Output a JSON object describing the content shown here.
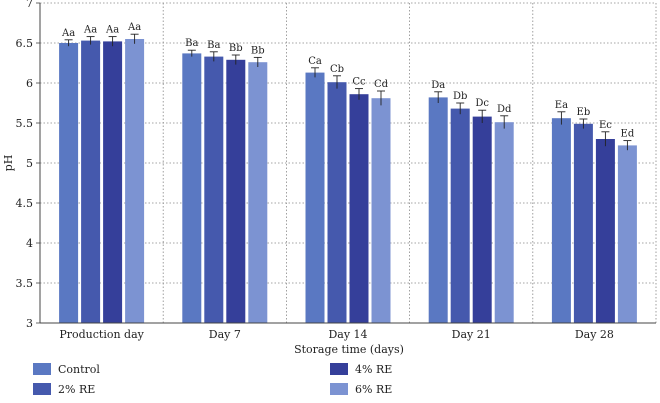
{
  "chart_data": {
    "type": "bar",
    "title": "",
    "xlabel": "Storage time (days)",
    "ylabel": "pH",
    "ylim": [
      3,
      7
    ],
    "yticks": [
      "3",
      "3.5",
      "4",
      "4.5",
      "5",
      "5.5",
      "6",
      "6.5",
      "7"
    ],
    "grid": true,
    "categories": [
      "Production day",
      "Day 7",
      "Day 14",
      "Day 21",
      "Day 28"
    ],
    "series": [
      {
        "name": "Control",
        "color": "#5a78c2",
        "values": [
          6.5,
          6.37,
          6.13,
          5.82,
          5.56
        ],
        "errors": [
          0.04,
          0.04,
          0.06,
          0.07,
          0.08
        ],
        "labels": [
          "Aa",
          "Ba",
          "Ca",
          "Da",
          "Ea"
        ]
      },
      {
        "name": "2% RE",
        "color": "#4559ad",
        "values": [
          6.53,
          6.33,
          6.01,
          5.68,
          5.49
        ],
        "errors": [
          0.05,
          0.06,
          0.08,
          0.07,
          0.06
        ],
        "labels": [
          "Aa",
          "Ba",
          "Cb",
          "Db",
          "Eb"
        ]
      },
      {
        "name": "4% RE",
        "color": "#353f9a",
        "values": [
          6.52,
          6.29,
          5.86,
          5.58,
          5.3
        ],
        "errors": [
          0.06,
          0.06,
          0.07,
          0.08,
          0.09
        ],
        "labels": [
          "Aa",
          "Bb",
          "Cc",
          "Dc",
          "Ec"
        ]
      },
      {
        "name": "6% RE",
        "color": "#7c93d2",
        "values": [
          6.55,
          6.26,
          5.81,
          5.51,
          5.22
        ],
        "errors": [
          0.06,
          0.06,
          0.09,
          0.08,
          0.06
        ],
        "labels": [
          "Aa",
          "Bb",
          "Cd",
          "Dd",
          "Ed"
        ]
      }
    ],
    "legend": {
      "placement": "bottom",
      "order": [
        "Control",
        "2% RE",
        "4% RE",
        "6% RE"
      ]
    }
  }
}
